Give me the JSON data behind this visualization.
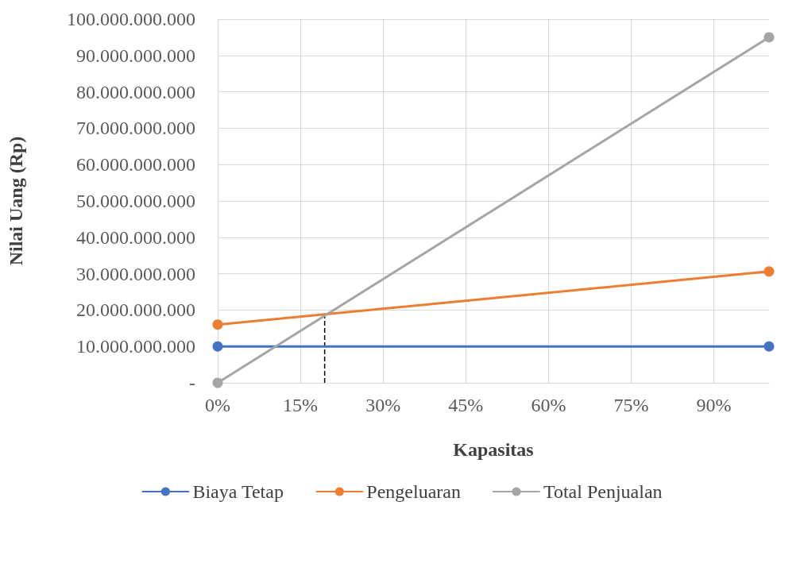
{
  "chart_data": {
    "type": "line",
    "xlabel": "Kapasitas",
    "ylabel": "Nilai Uang (Rp)",
    "x": [
      0,
      100
    ],
    "series": [
      {
        "name": "Biaya Tetap",
        "color": "#4472c4",
        "values": [
          10000000000,
          10000000000
        ]
      },
      {
        "name": "Pengeluaran",
        "color": "#ed7d31",
        "values": [
          16000000000,
          30600000000
        ]
      },
      {
        "name": "Total Penjualan",
        "color": "#a5a5a5",
        "values": [
          0,
          95000000000
        ]
      }
    ],
    "xlim": [
      0,
      100
    ],
    "xticks": [
      {
        "value": 0,
        "label": "0%"
      },
      {
        "value": 15,
        "label": "15%"
      },
      {
        "value": 30,
        "label": "30%"
      },
      {
        "value": 45,
        "label": "45%"
      },
      {
        "value": 60,
        "label": "60%"
      },
      {
        "value": 75,
        "label": "75%"
      },
      {
        "value": 90,
        "label": "90%"
      }
    ],
    "ylim": [
      0,
      100000000000
    ],
    "yticks": [
      {
        "value": 0,
        "label": "-"
      },
      {
        "value": 10000000000,
        "label": "10.000.000.000"
      },
      {
        "value": 20000000000,
        "label": "20.000.000.000"
      },
      {
        "value": 30000000000,
        "label": "30.000.000.000"
      },
      {
        "value": 40000000000,
        "label": "40.000.000.000"
      },
      {
        "value": 50000000000,
        "label": "50.000.000.000"
      },
      {
        "value": 60000000000,
        "label": "60.000.000.000"
      },
      {
        "value": 70000000000,
        "label": "70.000.000.000"
      },
      {
        "value": 80000000000,
        "label": "80.000.000.000"
      },
      {
        "value": 90000000000,
        "label": "90.000.000.000"
      },
      {
        "value": 100000000000,
        "label": "100.000.000.000"
      }
    ],
    "ref_lines": [
      {
        "axis": "x",
        "value": 19.4,
        "color": "#000000",
        "line_style": "dashed"
      }
    ],
    "grid": true,
    "legend": "bottom",
    "marker": "circle",
    "line_style": "solid"
  }
}
